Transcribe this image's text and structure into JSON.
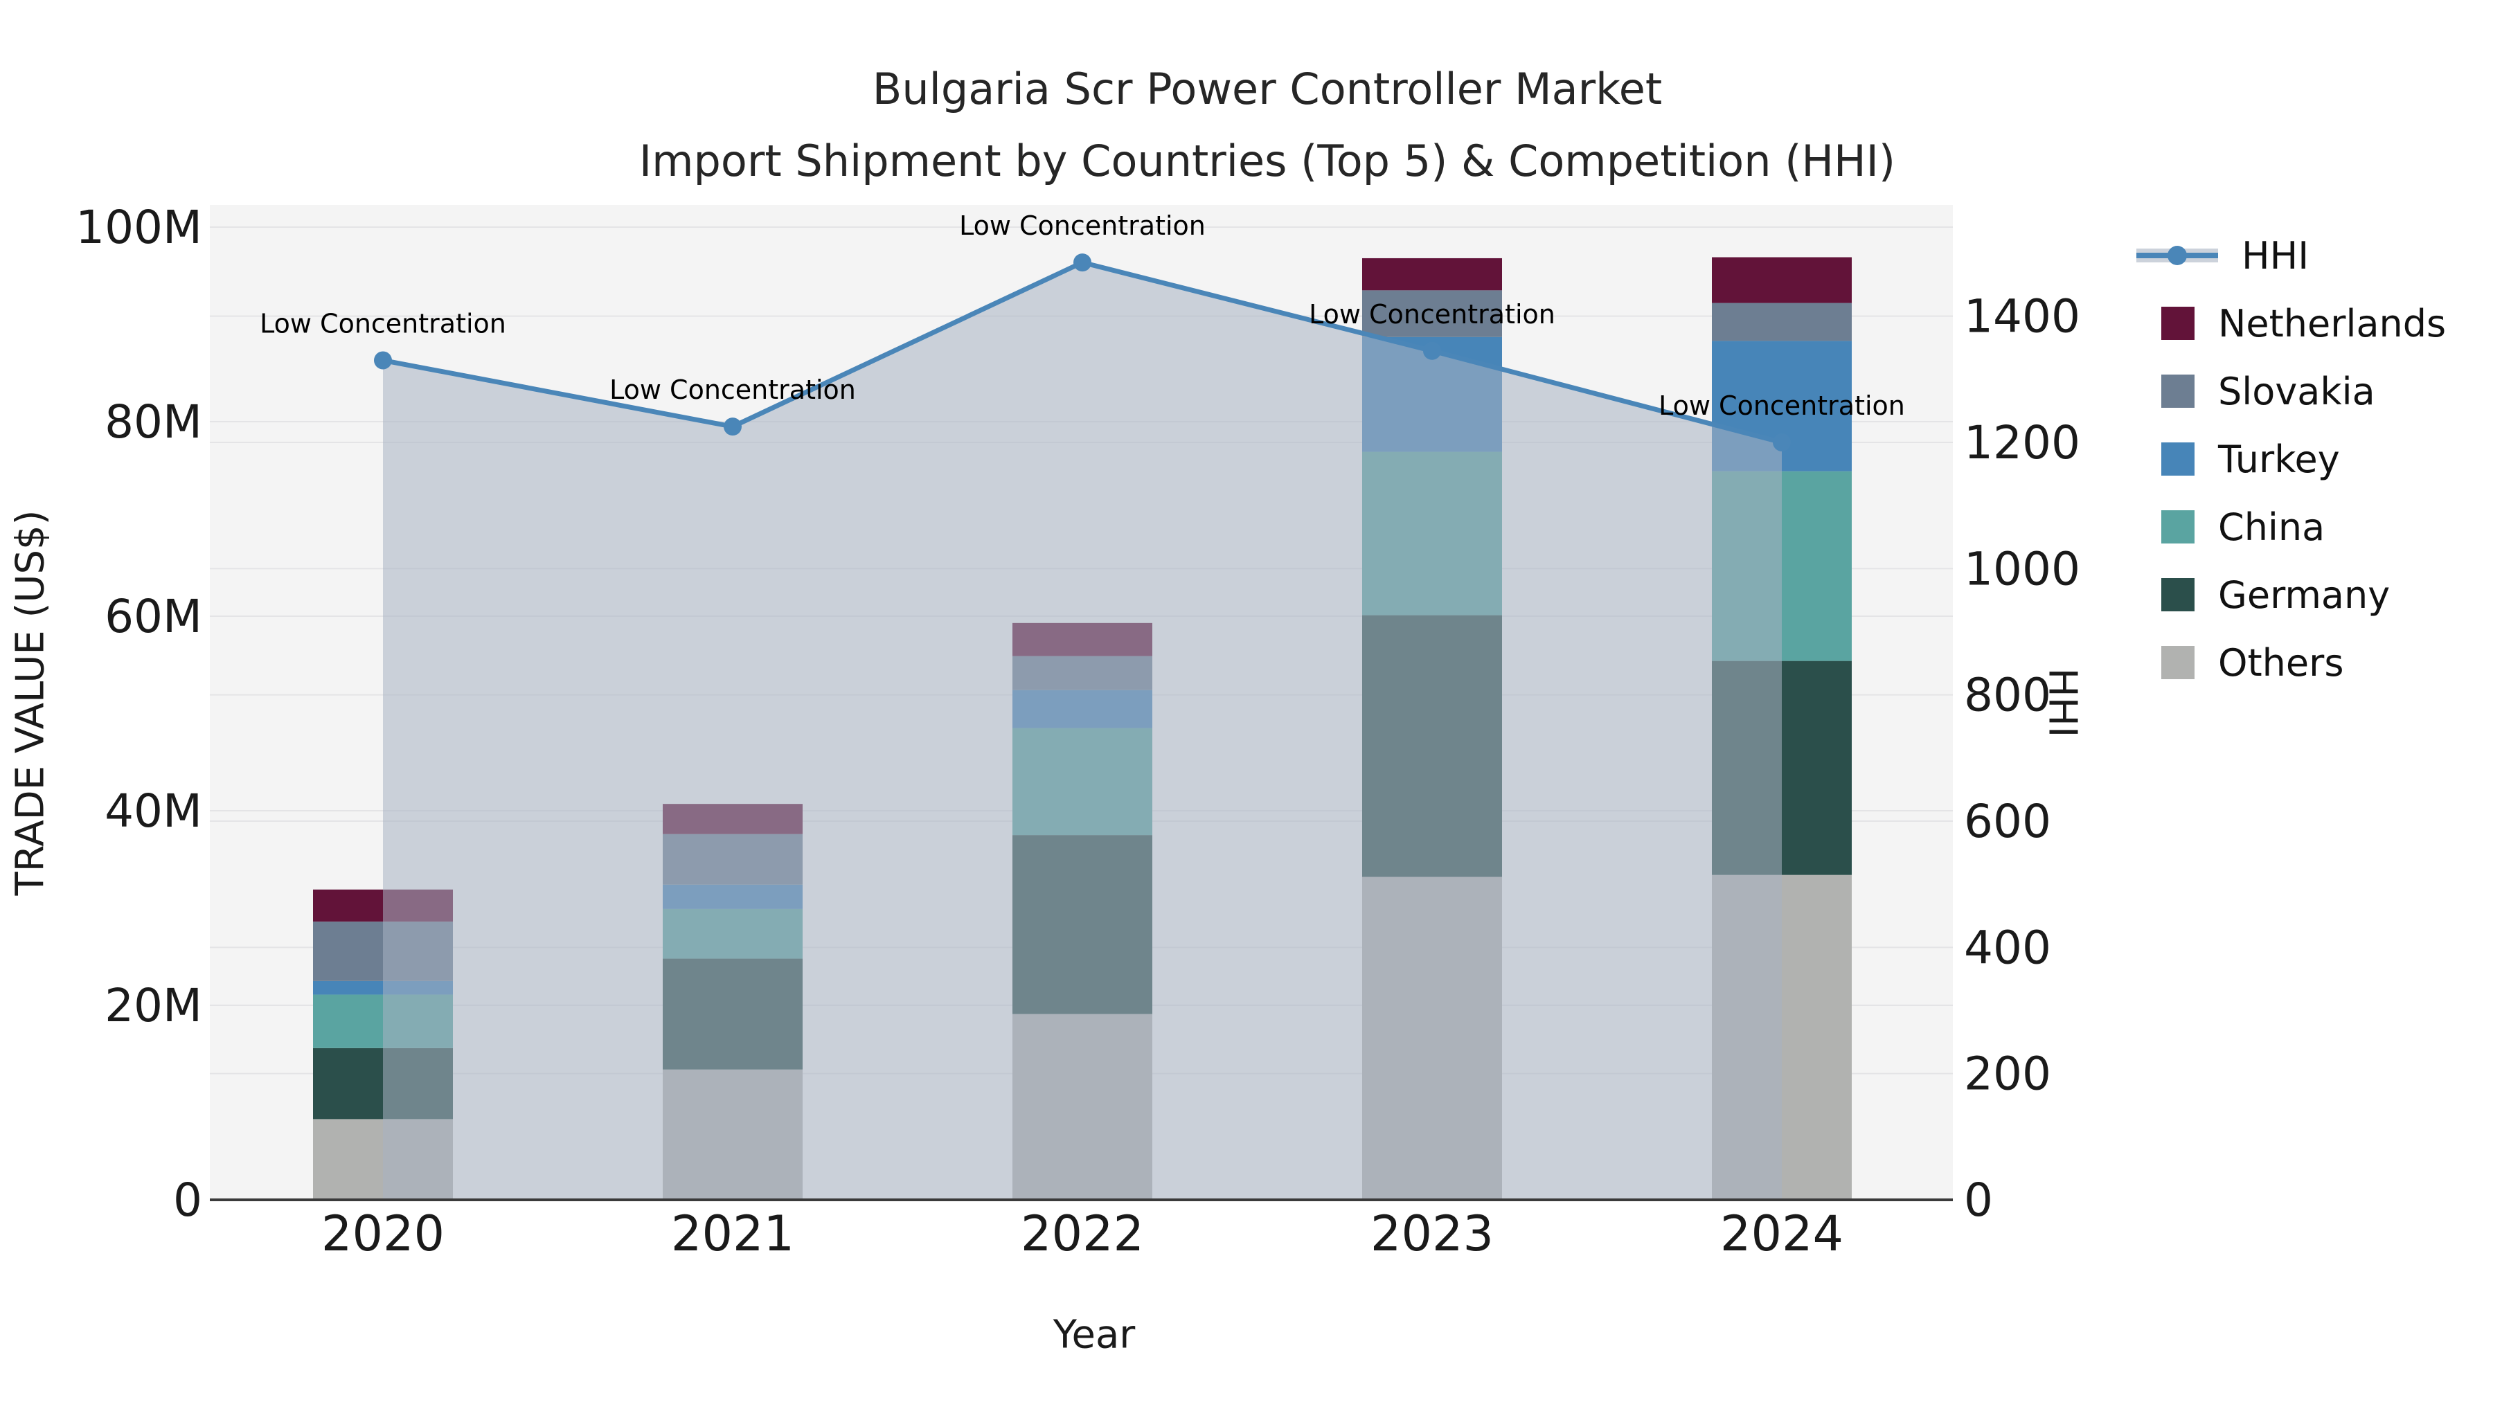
{
  "title": {
    "line1": "Bulgaria Scr Power Controller Market",
    "line2": "Import Shipment by Countries (Top 5) & Competition (HHI)"
  },
  "axes": {
    "y_left": {
      "label": "TRADE VALUE (US$)",
      "tick_labels": [
        "0",
        "20M",
        "40M",
        "60M",
        "80M",
        "100M"
      ],
      "tick_values": [
        0,
        20,
        40,
        60,
        80,
        100
      ],
      "range_top": 102.3
    },
    "y_right": {
      "label": "HHI",
      "tick_labels": [
        "0",
        "200",
        "400",
        "600",
        "800",
        "1000",
        "1200",
        "1400"
      ],
      "tick_values": [
        0,
        200,
        400,
        600,
        800,
        1000,
        1200,
        1400
      ],
      "range_top": 1576
    },
    "x": {
      "label": "Year",
      "categories": [
        "2020",
        "2021",
        "2022",
        "2023",
        "2024"
      ]
    }
  },
  "legend": [
    {
      "label": "HHI",
      "type": "line",
      "color": "#4a86b8"
    },
    {
      "label": "Netherlands",
      "type": "patch",
      "color": "#621339"
    },
    {
      "label": "Slovakia",
      "type": "patch",
      "color": "#6d7e92"
    },
    {
      "label": "Turkey",
      "type": "patch",
      "color": "#4785b8"
    },
    {
      "label": "China",
      "type": "patch",
      "color": "#5aa4a1"
    },
    {
      "label": "Germany",
      "type": "patch",
      "color": "#2b4f4b"
    },
    {
      "label": "Others",
      "type": "patch",
      "color": "#b1b2b0"
    }
  ],
  "chart_data": {
    "type": "bar",
    "subtype": "stacked-bar-with-line-area-overlay",
    "categories": [
      "2020",
      "2021",
      "2022",
      "2023",
      "2024"
    ],
    "bar_unit": "M US$",
    "series": [
      {
        "name": "Others",
        "color": "#b1b2b0",
        "values": [
          8.3,
          13.4,
          19.1,
          33.2,
          33.4
        ]
      },
      {
        "name": "Germany",
        "color": "#2b4f4b",
        "values": [
          7.3,
          11.4,
          18.4,
          26.9,
          22.0
        ]
      },
      {
        "name": "China",
        "color": "#5aa4a1",
        "values": [
          5.5,
          5.1,
          11.0,
          16.8,
          19.5
        ]
      },
      {
        "name": "Turkey",
        "color": "#4785b8",
        "values": [
          1.4,
          2.5,
          3.9,
          11.8,
          13.4
        ]
      },
      {
        "name": "Slovakia",
        "color": "#6d7e92",
        "values": [
          6.1,
          5.2,
          3.5,
          4.8,
          3.9
        ]
      },
      {
        "name": "Netherlands",
        "color": "#621339",
        "values": [
          3.3,
          3.1,
          3.4,
          3.3,
          4.7
        ]
      }
    ],
    "bar_totals": [
      31.9,
      40.7,
      59.3,
      96.8,
      96.9
    ],
    "line_series": {
      "name": "HHI",
      "color": "#4a86b8",
      "area_fill": "rgba(168,178,195,0.55)",
      "values": [
        1330,
        1225,
        1485,
        1345,
        1200
      ],
      "point_annotation": "Low Concentration"
    },
    "title": "Bulgaria Scr Power Controller Market — Import Shipment by Countries (Top 5) & Competition (HHI)",
    "xlabel": "Year",
    "ylabel_left": "TRADE VALUE (US$)",
    "ylabel_right": "HHI",
    "ylim_left": [
      0,
      102.3
    ],
    "ylim_right": [
      0,
      1576
    ],
    "grid": true,
    "legend_position": "right",
    "plot_background": "#f4f4f4",
    "gridline_color": "#e4e4e6",
    "spine_color": "#3a3a3a"
  }
}
